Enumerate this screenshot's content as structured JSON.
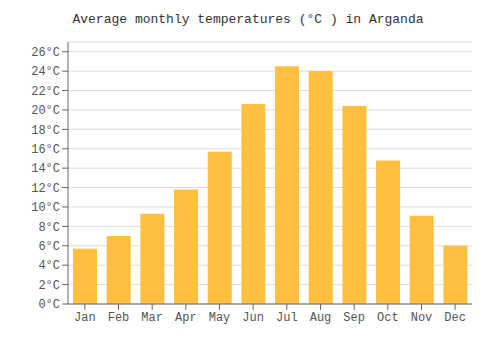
{
  "chart_data": {
    "type": "bar",
    "title": "Average monthly temperatures (°C ) in Arganda",
    "categories": [
      "Jan",
      "Feb",
      "Mar",
      "Apr",
      "May",
      "Jun",
      "Jul",
      "Aug",
      "Sep",
      "Oct",
      "Nov",
      "Dec"
    ],
    "values": [
      5.7,
      7.0,
      9.3,
      11.8,
      15.7,
      20.6,
      24.5,
      24.0,
      20.4,
      14.8,
      9.1,
      6.0
    ],
    "color": "#FFC040",
    "ylim": [
      0,
      27
    ],
    "yticks": [
      {
        "value": 0,
        "label": "0°C"
      },
      {
        "value": 2,
        "label": "2°C"
      },
      {
        "value": 4,
        "label": "4°C"
      },
      {
        "value": 6,
        "label": "6°C"
      },
      {
        "value": 8,
        "label": "8°C"
      },
      {
        "value": 10,
        "label": "10°C"
      },
      {
        "value": 12,
        "label": "12°C"
      },
      {
        "value": 14,
        "label": "14°C"
      },
      {
        "value": 16,
        "label": "16°C"
      },
      {
        "value": 18,
        "label": "18°C"
      },
      {
        "value": 20,
        "label": "20°C"
      },
      {
        "value": 22,
        "label": "22°C"
      },
      {
        "value": 24,
        "label": "24°C"
      },
      {
        "value": 26,
        "label": "26°C"
      }
    ],
    "grid": true
  }
}
